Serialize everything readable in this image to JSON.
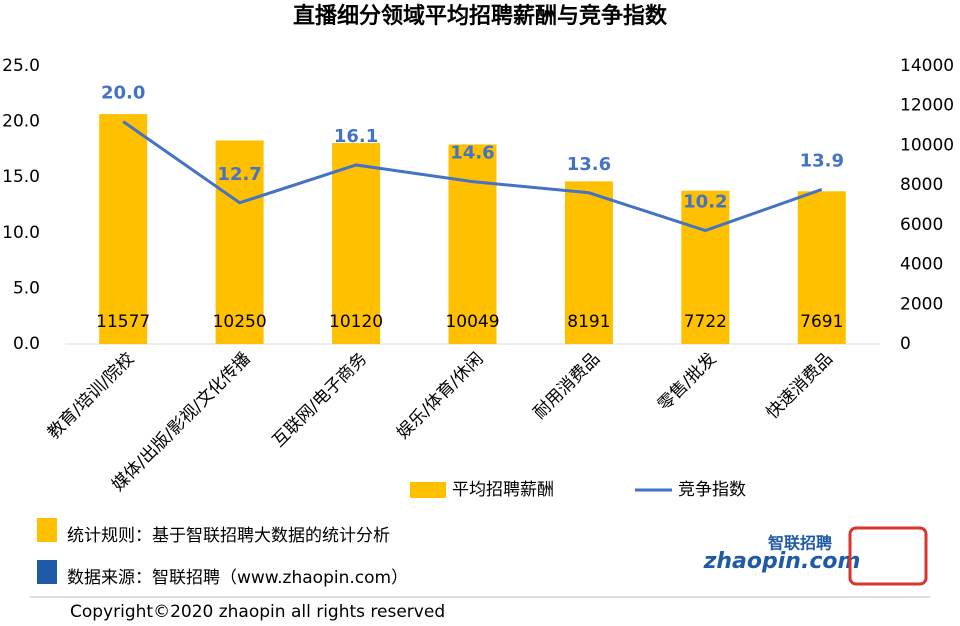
{
  "chart_data": {
    "type": "bar",
    "title": "直播细分领域平均招聘薪酬与竞争指数",
    "categories": [
      "教育/培训/院校",
      "媒体/出版/影视/文化传播",
      "互联网/电子商务",
      "娱乐/体育/休闲",
      "耐用消费品",
      "零售/批发",
      "快速消费品"
    ],
    "series": [
      {
        "name": "平均招聘薪酬",
        "type": "bar",
        "axis": "y2",
        "color": "#FFC000",
        "values": [
          11577,
          10250,
          10120,
          10049,
          8191,
          7722,
          7691
        ]
      },
      {
        "name": "竞争指数",
        "type": "line",
        "axis": "y",
        "color": "#4472C4",
        "values": [
          20.0,
          12.7,
          16.1,
          14.6,
          13.6,
          10.2,
          13.9
        ],
        "value_labels": [
          "20.0",
          "12.7",
          "16.1",
          "14.6",
          "13.6",
          "10.2",
          "13.9"
        ]
      }
    ],
    "ylim": [
      0,
      25
    ],
    "yticks": [
      {
        "value": 0,
        "label": "0.0"
      },
      {
        "value": 5,
        "label": "5.0"
      },
      {
        "value": 10,
        "label": "10.0"
      },
      {
        "value": 15,
        "label": "15.0"
      },
      {
        "value": 20,
        "label": "20.0"
      },
      {
        "value": 25,
        "label": "25.0"
      }
    ],
    "y2lim": [
      0,
      14000
    ],
    "y2ticks": [
      0,
      2000,
      4000,
      6000,
      8000,
      10000,
      12000,
      14000
    ],
    "legend": "bottom"
  },
  "footer": {
    "notes": [
      "统计规则：基于智联招聘大数据的统计分析",
      "数据来源：智联招聘（www.zhaopin.com）"
    ],
    "copyright": "Copyright©2020 zhaopin all rights reserved",
    "logo": [
      "智联招聘",
      "zhaopin.com"
    ]
  }
}
